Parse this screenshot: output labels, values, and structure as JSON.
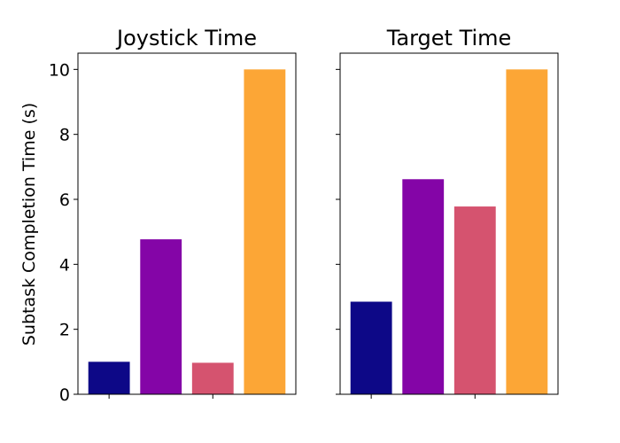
{
  "chart_data": {
    "type": "bar",
    "ylabel": "Subtask Completion Time (s)",
    "ylim": [
      0,
      10.5
    ],
    "yticks": [
      0,
      2,
      4,
      6,
      8,
      10
    ],
    "shared_y": true,
    "grid": false,
    "legend": "none",
    "colors": [
      "#0d0887",
      "#8405a7",
      "#d5536f",
      "#fca636"
    ],
    "panels": [
      {
        "title": "Joystick Time",
        "values": [
          1.0,
          4.77,
          0.97,
          10.0
        ]
      },
      {
        "title": "Target Time",
        "values": [
          2.85,
          6.62,
          5.78,
          10.0
        ]
      }
    ]
  }
}
